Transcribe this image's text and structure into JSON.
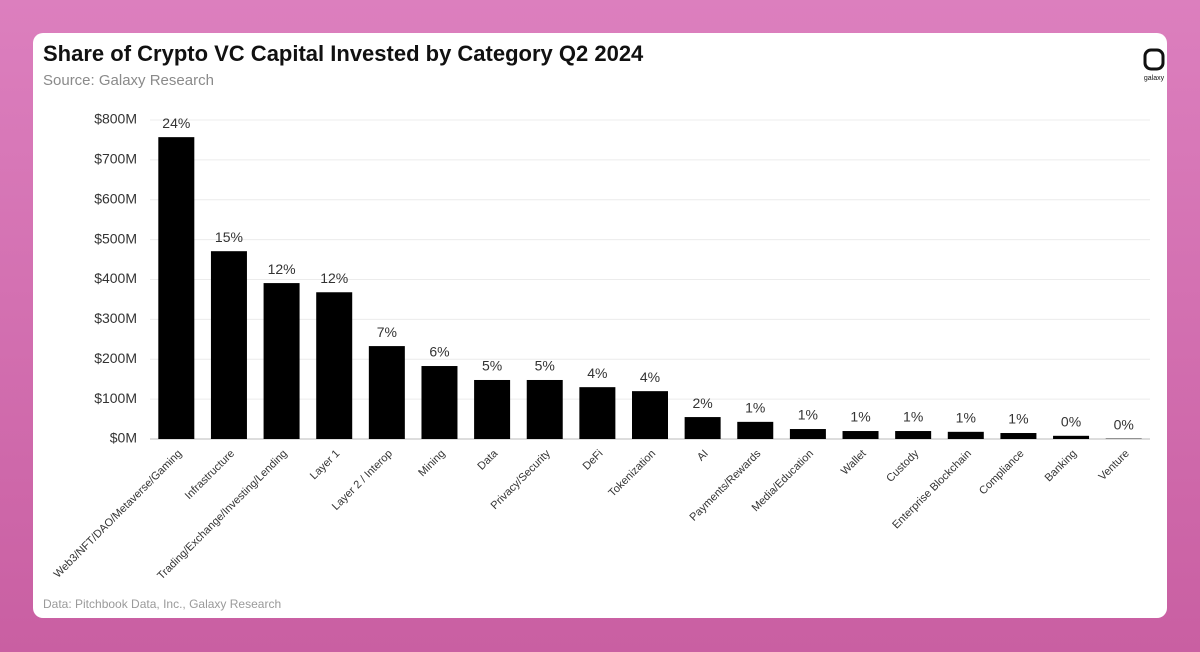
{
  "chart_data": {
    "type": "bar",
    "title": "Share of Crypto VC Capital Invested by Category Q2 2024",
    "subtitle": "Source: Galaxy Research",
    "footnote": "Data: Pitchbook Data, Inc., Galaxy Research",
    "logo": "galaxy",
    "categories": [
      "Web3/NFT/DAO/Metaverse/Gaming",
      "Infrastructure",
      "Trading/Exchange/Investing/Lending",
      "Layer 1",
      "Layer 2 / Interop",
      "Mining",
      "Data",
      "Privacy/Security",
      "DeFi",
      "Tokenization",
      "AI",
      "Payments/Rewards",
      "Media/Education",
      "Wallet",
      "Custody",
      "Enterprise Blockchain",
      "Compliance",
      "Banking",
      "Venture"
    ],
    "values": [
      757,
      471,
      391,
      368,
      233,
      183,
      148,
      148,
      130,
      120,
      55,
      43,
      25,
      20,
      20,
      18,
      15,
      8,
      1
    ],
    "shares": [
      {
        "value": 24,
        "label": "24%"
      },
      {
        "value": 15,
        "label": "15%"
      },
      {
        "value": 12,
        "label": "12%"
      },
      {
        "value": 12,
        "label": "12%"
      },
      {
        "value": 7,
        "label": "7%"
      },
      {
        "value": 6,
        "label": "6%"
      },
      {
        "value": 5,
        "label": "5%"
      },
      {
        "value": 5,
        "label": "5%"
      },
      {
        "value": 4,
        "label": "4%"
      },
      {
        "value": 4,
        "label": "4%"
      },
      {
        "value": 2,
        "label": "2%"
      },
      {
        "value": 1,
        "label": "1%"
      },
      {
        "value": 1,
        "label": "1%"
      },
      {
        "value": 1,
        "label": "1%"
      },
      {
        "value": 1,
        "label": "1%"
      },
      {
        "value": 1,
        "label": "1%"
      },
      {
        "value": 1,
        "label": "1%"
      },
      {
        "value": 0,
        "label": "0%"
      },
      {
        "value": 0,
        "label": "0%"
      }
    ],
    "color": "#000000",
    "ylim": [
      0,
      800
    ],
    "yticks": [
      {
        "value": 0,
        "label": "$0M"
      },
      {
        "value": 100,
        "label": "$100M"
      },
      {
        "value": 200,
        "label": "$200M"
      },
      {
        "value": 300,
        "label": "$300M"
      },
      {
        "value": 400,
        "label": "$400M"
      },
      {
        "value": 500,
        "label": "$500M"
      },
      {
        "value": 600,
        "label": "$600M"
      },
      {
        "value": 700,
        "label": "$700M"
      },
      {
        "value": 800,
        "label": "$800M"
      }
    ],
    "grid": true
  }
}
